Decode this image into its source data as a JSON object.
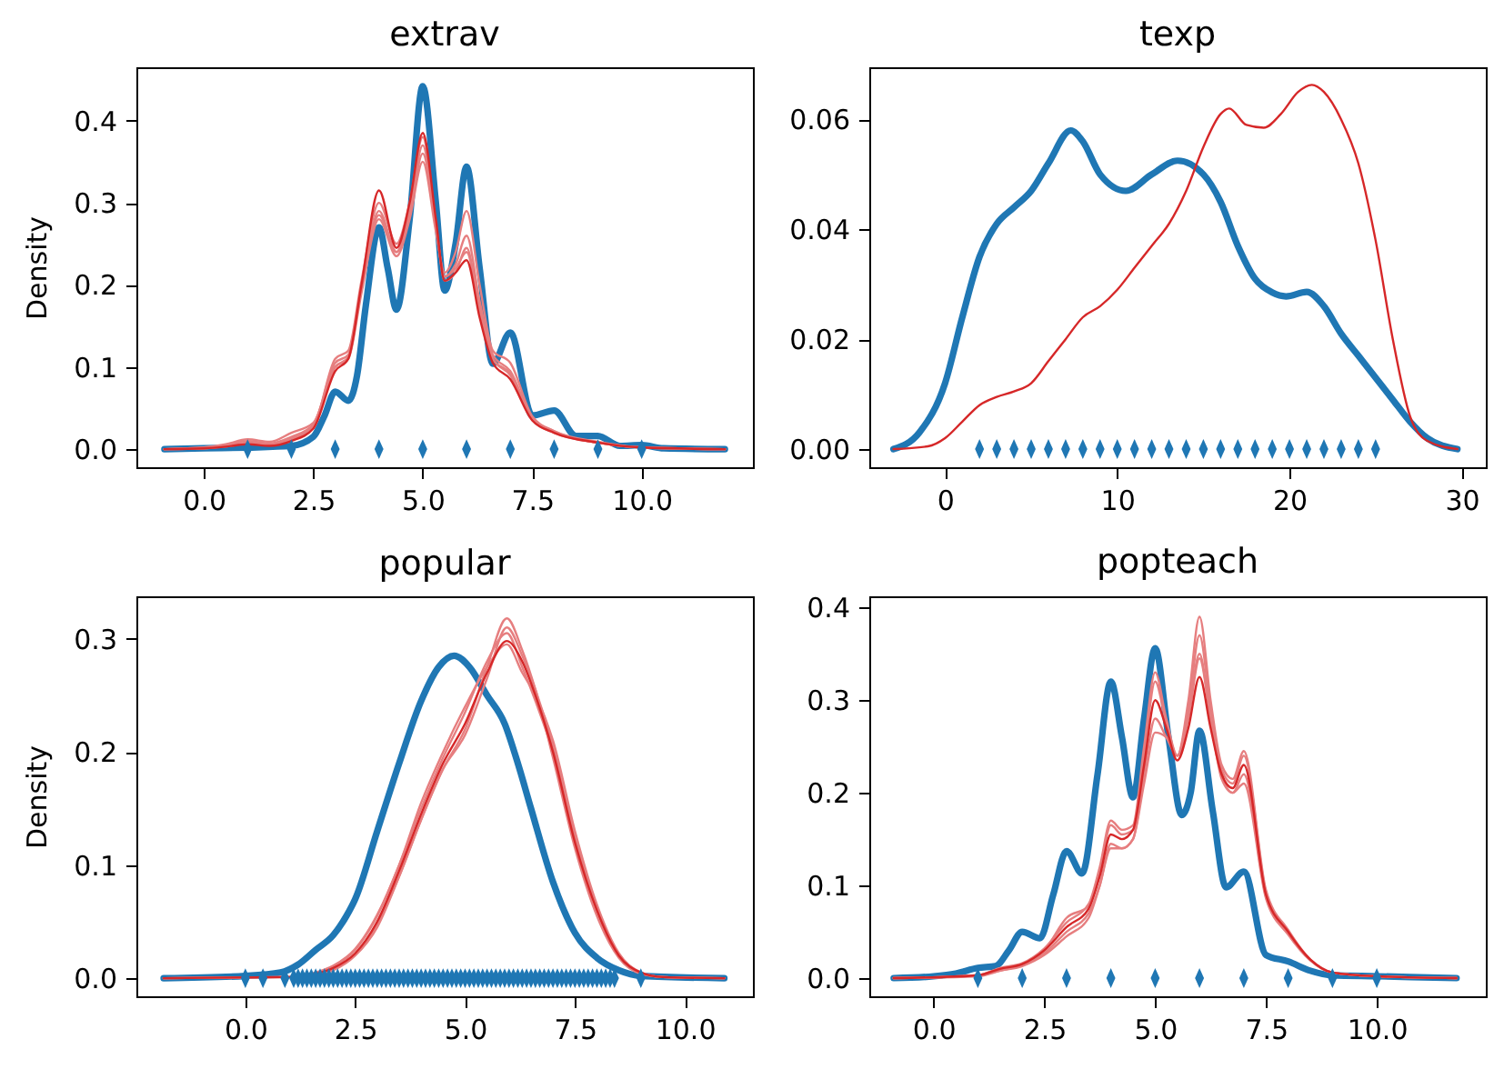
{
  "chart_data": [
    {
      "type": "line",
      "title": "extrav",
      "ylabel": "Density",
      "xlim": [
        -1.54,
        12.54
      ],
      "ylim": [
        -0.022,
        0.465
      ],
      "xticks": [
        {
          "value": 0,
          "label": "0.0"
        },
        2.5,
        {
          "value": 5,
          "label": "5.0"
        },
        7.5,
        {
          "value": 10,
          "label": "10.0"
        }
      ],
      "yticks": [
        {
          "value": 0,
          "label": "0.0"
        },
        0.1,
        0.2,
        0.3,
        0.4
      ],
      "series": [
        {
          "color": "#1f77b4",
          "x": [
            -0.9,
            0,
            1,
            2,
            2.5,
            2.75,
            3,
            3.3,
            3.5,
            3.7,
            4,
            4.2,
            4.4,
            4.7,
            5,
            5.3,
            5.5,
            5.75,
            6,
            6.3,
            6.6,
            7,
            7.5,
            8,
            8.5,
            9,
            9.5,
            10,
            10.5,
            11.9
          ],
          "values": [
            0,
            0.001,
            0.002,
            0.004,
            0.015,
            0.04,
            0.07,
            0.059,
            0.09,
            0.175,
            0.27,
            0.22,
            0.17,
            0.28,
            0.442,
            0.3,
            0.193,
            0.25,
            0.344,
            0.22,
            0.104,
            0.142,
            0.041,
            0.047,
            0.016,
            0.016,
            0.004,
            0.005,
            0.001,
            0
          ]
        },
        {
          "color": "#e67e7f",
          "x": [
            -0.9,
            0,
            0.5,
            1,
            1.5,
            2,
            2.5,
            3,
            3.3,
            3.6,
            4,
            4.4,
            4.7,
            5,
            5.3,
            5.5,
            5.75,
            6,
            6.3,
            6.6,
            7,
            7.5,
            8,
            9,
            10,
            11.9
          ],
          "values": [
            0,
            0.002,
            0.005,
            0.01,
            0.007,
            0.015,
            0.03,
            0.105,
            0.115,
            0.195,
            0.29,
            0.24,
            0.29,
            0.37,
            0.27,
            0.21,
            0.225,
            0.26,
            0.18,
            0.115,
            0.095,
            0.038,
            0.022,
            0.009,
            0.002,
            0
          ]
        },
        {
          "color": "#e67e7f",
          "x": [
            -0.9,
            0,
            0.5,
            1,
            1.5,
            2,
            2.5,
            3,
            3.3,
            3.6,
            4,
            4.4,
            4.7,
            5,
            5.3,
            5.5,
            5.75,
            6,
            6.3,
            6.6,
            7,
            7.5,
            8,
            9,
            10,
            11.9
          ],
          "values": [
            0,
            0.001,
            0.004,
            0.008,
            0.006,
            0.013,
            0.028,
            0.1,
            0.11,
            0.19,
            0.28,
            0.235,
            0.28,
            0.35,
            0.265,
            0.215,
            0.24,
            0.29,
            0.2,
            0.12,
            0.105,
            0.04,
            0.022,
            0.008,
            0.002,
            0
          ]
        },
        {
          "color": "#e67e7f",
          "x": [
            -0.9,
            0,
            0.5,
            1,
            1.5,
            2,
            2.5,
            3,
            3.3,
            3.6,
            4,
            4.4,
            4.7,
            5,
            5.3,
            5.5,
            5.75,
            6,
            6.3,
            6.6,
            7,
            7.5,
            8,
            9,
            10,
            11.9
          ],
          "values": [
            0,
            0.001,
            0.003,
            0.007,
            0.005,
            0.012,
            0.027,
            0.11,
            0.12,
            0.205,
            0.3,
            0.25,
            0.3,
            0.38,
            0.275,
            0.205,
            0.215,
            0.245,
            0.17,
            0.11,
            0.09,
            0.036,
            0.02,
            0.008,
            0.002,
            0
          ]
        },
        {
          "color": "#e67e7f",
          "x": [
            -0.9,
            0,
            0.5,
            1,
            1.5,
            2,
            2.5,
            3,
            3.3,
            3.6,
            4,
            4.4,
            4.7,
            5,
            5.3,
            5.5,
            5.75,
            6,
            6.3,
            6.6,
            7,
            7.5,
            8,
            9,
            10,
            11.9
          ],
          "values": [
            0,
            0.002,
            0.006,
            0.012,
            0.009,
            0.02,
            0.032,
            0.1,
            0.112,
            0.195,
            0.285,
            0.24,
            0.285,
            0.36,
            0.27,
            0.21,
            0.22,
            0.24,
            0.17,
            0.11,
            0.092,
            0.037,
            0.021,
            0.008,
            0.002,
            0
          ]
        },
        {
          "color": "#d62728",
          "x": [
            -0.9,
            0,
            0.5,
            1,
            1.5,
            2,
            2.5,
            3,
            3.3,
            3.6,
            4,
            4.4,
            4.7,
            5,
            5.3,
            5.5,
            5.75,
            6,
            6.3,
            6.6,
            7,
            7.5,
            8,
            9,
            10,
            11.9
          ],
          "values": [
            0,
            0.001,
            0.003,
            0.006,
            0.004,
            0.01,
            0.025,
            0.095,
            0.11,
            0.2,
            0.315,
            0.245,
            0.3,
            0.385,
            0.28,
            0.205,
            0.215,
            0.23,
            0.16,
            0.105,
            0.085,
            0.035,
            0.02,
            0.008,
            0.002,
            0
          ]
        },
        {
          "type": "scatter",
          "color": "#1f77b4",
          "x": [
            1,
            2,
            3,
            4,
            5,
            6,
            7,
            8,
            9,
            10
          ],
          "values": [
            0,
            0,
            0,
            0,
            0,
            0,
            0,
            0,
            0,
            0
          ]
        }
      ]
    },
    {
      "type": "line",
      "title": "texp",
      "xlim": [
        -4.4,
        31.4
      ],
      "ylim": [
        -0.0033,
        0.0695
      ],
      "xticks": [
        0,
        10,
        20,
        30
      ],
      "yticks": [
        {
          "value": 0,
          "label": "0.00"
        },
        {
          "value": 0.02,
          "label": "0.02"
        },
        {
          "value": 0.04,
          "label": "0.04"
        },
        {
          "value": 0.06,
          "label": "0.06"
        }
      ],
      "series": [
        {
          "color": "#1f77b4",
          "x": [
            -3,
            -1.5,
            0,
            1,
            2,
            3,
            4,
            5,
            6,
            7.3,
            8,
            9,
            10.5,
            12,
            13.5,
            15,
            16,
            17,
            18,
            19,
            19.8,
            21,
            22,
            23,
            24,
            25,
            26,
            27,
            28,
            29.75
          ],
          "values": [
            0,
            0.003,
            0.012,
            0.024,
            0.035,
            0.041,
            0.044,
            0.047,
            0.052,
            0.058,
            0.056,
            0.05,
            0.047,
            0.05,
            0.0525,
            0.05,
            0.045,
            0.037,
            0.031,
            0.0285,
            0.0278,
            0.0286,
            0.026,
            0.021,
            0.017,
            0.013,
            0.009,
            0.005,
            0.002,
            0
          ]
        },
        {
          "color": "#d62728",
          "x": [
            -3,
            -1,
            0,
            1,
            2,
            3,
            4,
            5,
            6,
            7,
            8,
            9,
            10,
            11,
            12,
            13,
            14,
            15,
            16,
            16.5,
            17.5,
            18.5,
            19.5,
            20.5,
            21.3,
            22,
            23,
            24,
            25,
            26,
            27,
            28,
            29.75
          ],
          "values": [
            0,
            0.0005,
            0.002,
            0.005,
            0.008,
            0.0095,
            0.0105,
            0.012,
            0.016,
            0.02,
            0.024,
            0.026,
            0.029,
            0.033,
            0.037,
            0.041,
            0.047,
            0.055,
            0.061,
            0.062,
            0.059,
            0.0585,
            0.061,
            0.065,
            0.0663,
            0.065,
            0.06,
            0.052,
            0.038,
            0.02,
            0.006,
            0.0015,
            0
          ]
        },
        {
          "type": "scatter",
          "color": "#1f77b4",
          "x": [
            2,
            3,
            4,
            5,
            6,
            7,
            8,
            9,
            10,
            11,
            12,
            13,
            14,
            15,
            16,
            17,
            18,
            19,
            20,
            21,
            22,
            23,
            24,
            25
          ],
          "values": [
            0,
            0,
            0,
            0,
            0,
            0,
            0,
            0,
            0,
            0,
            0,
            0,
            0,
            0,
            0,
            0,
            0,
            0,
            0,
            0,
            0,
            0,
            0,
            0
          ]
        }
      ]
    },
    {
      "type": "line",
      "title": "popular",
      "ylabel": "Density",
      "xlim": [
        -2.48,
        11.55
      ],
      "ylim": [
        -0.016,
        0.3375
      ],
      "xticks": [
        {
          "value": 0,
          "label": "0.0"
        },
        2.5,
        {
          "value": 5,
          "label": "5.0"
        },
        7.5,
        {
          "value": 10,
          "label": "10.0"
        }
      ],
      "yticks": [
        {
          "value": 0,
          "label": "0.0"
        },
        0.1,
        0.2,
        0.3
      ],
      "series": [
        {
          "color": "#1f77b4",
          "x": [
            -1.86,
            0,
            0.8,
            1.2,
            1.6,
            2,
            2.3,
            2.5,
            3,
            3.5,
            4,
            4.4,
            4.75,
            5.1,
            5.5,
            5.9,
            6.2,
            6.5,
            7,
            7.5,
            8,
            8.5,
            9,
            10.9
          ],
          "values": [
            0,
            0.002,
            0.005,
            0.012,
            0.025,
            0.038,
            0.055,
            0.07,
            0.13,
            0.19,
            0.245,
            0.275,
            0.285,
            0.275,
            0.25,
            0.225,
            0.19,
            0.15,
            0.085,
            0.04,
            0.018,
            0.007,
            0.002,
            0
          ]
        },
        {
          "color": "#e67e7f",
          "x": [
            -1.86,
            1,
            1.5,
            2,
            2.5,
            3,
            3.5,
            4,
            4.5,
            5,
            5.5,
            5.95,
            6.3,
            6.6,
            7,
            7.5,
            8,
            8.5,
            9,
            9.5,
            10.9
          ],
          "values": [
            0,
            0.001,
            0.002,
            0.007,
            0.02,
            0.045,
            0.09,
            0.14,
            0.185,
            0.22,
            0.275,
            0.318,
            0.29,
            0.255,
            0.195,
            0.115,
            0.055,
            0.018,
            0.004,
            0.001,
            0
          ]
        },
        {
          "color": "#e67e7f",
          "x": [
            -1.86,
            1,
            1.5,
            2,
            2.5,
            3,
            3.5,
            4,
            4.5,
            5,
            5.5,
            5.95,
            6.3,
            6.6,
            7,
            7.5,
            8,
            8.5,
            9,
            9.5,
            10.9
          ],
          "values": [
            0,
            0.001,
            0.003,
            0.01,
            0.025,
            0.055,
            0.1,
            0.15,
            0.195,
            0.235,
            0.28,
            0.305,
            0.275,
            0.245,
            0.2,
            0.125,
            0.062,
            0.021,
            0.005,
            0.001,
            0
          ]
        },
        {
          "color": "#e67e7f",
          "x": [
            -1.86,
            1,
            1.5,
            2,
            2.5,
            3,
            3.5,
            4,
            4.5,
            5,
            5.5,
            5.95,
            6.3,
            6.6,
            7,
            7.5,
            8,
            8.5,
            9,
            9.5,
            10.9
          ],
          "values": [
            0,
            0.001,
            0.003,
            0.008,
            0.021,
            0.048,
            0.09,
            0.14,
            0.185,
            0.215,
            0.265,
            0.31,
            0.285,
            0.255,
            0.205,
            0.122,
            0.06,
            0.02,
            0.005,
            0.001,
            0
          ]
        },
        {
          "color": "#e67e7f",
          "x": [
            -1.86,
            1,
            1.5,
            2,
            2.5,
            3,
            3.5,
            4,
            4.5,
            5,
            5.5,
            5.95,
            6.3,
            6.6,
            7,
            7.5,
            8,
            8.5,
            9,
            9.5,
            10.9
          ],
          "values": [
            0,
            0.001,
            0.004,
            0.011,
            0.026,
            0.056,
            0.1,
            0.155,
            0.2,
            0.24,
            0.275,
            0.295,
            0.27,
            0.25,
            0.21,
            0.13,
            0.065,
            0.022,
            0.005,
            0.001,
            0
          ]
        },
        {
          "color": "#d62728",
          "x": [
            -1.86,
            1,
            1.5,
            2,
            2.5,
            3,
            3.5,
            4,
            4.5,
            5,
            5.5,
            5.95,
            6.3,
            6.6,
            7,
            7.5,
            8,
            8.5,
            9,
            9.5,
            10.9
          ],
          "values": [
            0,
            0.001,
            0.003,
            0.009,
            0.022,
            0.05,
            0.095,
            0.145,
            0.19,
            0.225,
            0.27,
            0.298,
            0.28,
            0.25,
            0.2,
            0.12,
            0.06,
            0.02,
            0.005,
            0.001,
            0
          ]
        },
        {
          "type": "scatter",
          "color": "#1f77b4",
          "x": [
            0,
            0.4,
            0.9,
            1.1,
            1.2,
            1.3,
            1.4,
            1.5,
            1.6,
            1.7,
            1.8,
            1.9,
            2,
            2.1,
            2.2,
            2.3,
            2.4,
            2.5,
            2.6,
            2.7,
            2.8,
            2.9,
            3,
            3.1,
            3.2,
            3.3,
            3.4,
            3.5,
            3.6,
            3.7,
            3.8,
            3.9,
            4,
            4.1,
            4.2,
            4.3,
            4.4,
            4.5,
            4.6,
            4.7,
            4.8,
            4.9,
            5,
            5.1,
            5.2,
            5.3,
            5.4,
            5.5,
            5.6,
            5.7,
            5.8,
            5.9,
            6,
            6.1,
            6.2,
            6.3,
            6.4,
            6.5,
            6.6,
            6.7,
            6.8,
            6.9,
            7,
            7.1,
            7.2,
            7.3,
            7.4,
            7.5,
            7.6,
            7.7,
            7.8,
            7.9,
            8,
            8.1,
            8.2,
            8.3,
            8.4,
            9
          ],
          "values": [
            0,
            0,
            0,
            0,
            0,
            0,
            0,
            0,
            0,
            0,
            0,
            0,
            0,
            0,
            0,
            0,
            0,
            0,
            0,
            0,
            0,
            0,
            0,
            0,
            0,
            0,
            0,
            0,
            0,
            0,
            0,
            0,
            0,
            0,
            0,
            0,
            0,
            0,
            0,
            0,
            0,
            0,
            0,
            0,
            0,
            0,
            0,
            0,
            0,
            0,
            0,
            0,
            0,
            0,
            0,
            0,
            0,
            0,
            0,
            0,
            0,
            0,
            0,
            0,
            0,
            0,
            0,
            0,
            0,
            0,
            0,
            0,
            0,
            0,
            0,
            0,
            0,
            0
          ]
        }
      ]
    },
    {
      "type": "line",
      "title": "popteach",
      "xlim": [
        -1.45,
        12.46
      ],
      "ylim": [
        -0.0196,
        0.412
      ],
      "xticks": [
        {
          "value": 0,
          "label": "0.0"
        },
        2.5,
        {
          "value": 5,
          "label": "5.0"
        },
        7.5,
        {
          "value": 10,
          "label": "10.0"
        }
      ],
      "yticks": [
        {
          "value": 0,
          "label": "0.0"
        },
        0.1,
        0.2,
        0.3,
        0.4
      ],
      "series": [
        {
          "color": "#1f77b4",
          "x": [
            -0.9,
            0,
            0.5,
            1,
            1.4,
            1.7,
            2,
            2.4,
            2.7,
            3,
            3.35,
            3.7,
            4,
            4.25,
            4.5,
            4.75,
            5,
            5.3,
            5.6,
            5.8,
            6,
            6.3,
            6.6,
            7,
            7.5,
            8,
            8.5,
            9,
            10,
            11.8
          ],
          "values": [
            0,
            0.002,
            0.005,
            0.011,
            0.013,
            0.03,
            0.05,
            0.043,
            0.09,
            0.137,
            0.113,
            0.22,
            0.32,
            0.26,
            0.195,
            0.28,
            0.356,
            0.26,
            0.176,
            0.2,
            0.267,
            0.18,
            0.098,
            0.115,
            0.025,
            0.018,
            0.008,
            0.003,
            0.002,
            0
          ]
        },
        {
          "color": "#e67e7f",
          "x": [
            -0.9,
            1,
            1.5,
            2,
            2.5,
            3,
            3.5,
            3.75,
            4,
            4.25,
            4.5,
            4.75,
            5,
            5.25,
            5.5,
            5.75,
            6,
            6.25,
            6.5,
            6.75,
            7,
            7.5,
            8,
            8.5,
            9,
            10,
            11.8
          ],
          "values": [
            0,
            0.003,
            0.008,
            0.013,
            0.025,
            0.045,
            0.065,
            0.1,
            0.14,
            0.14,
            0.15,
            0.21,
            0.265,
            0.26,
            0.24,
            0.3,
            0.39,
            0.3,
            0.23,
            0.215,
            0.245,
            0.095,
            0.052,
            0.02,
            0.006,
            0.002,
            0
          ]
        },
        {
          "color": "#e67e7f",
          "x": [
            -0.9,
            1,
            1.5,
            2,
            2.5,
            3,
            3.5,
            3.75,
            4,
            4.25,
            4.5,
            4.75,
            5,
            5.25,
            5.5,
            5.75,
            6,
            6.25,
            6.5,
            6.75,
            7,
            7.5,
            8,
            8.5,
            9,
            10,
            11.8
          ],
          "values": [
            0,
            0.002,
            0.008,
            0.014,
            0.027,
            0.05,
            0.07,
            0.1,
            0.145,
            0.14,
            0.15,
            0.22,
            0.28,
            0.26,
            0.24,
            0.29,
            0.37,
            0.29,
            0.225,
            0.21,
            0.24,
            0.092,
            0.05,
            0.02,
            0.006,
            0.002,
            0
          ]
        },
        {
          "color": "#e67e7f",
          "x": [
            -0.9,
            1,
            1.5,
            2,
            2.5,
            3,
            3.5,
            3.75,
            4,
            4.25,
            4.5,
            4.75,
            5,
            5.25,
            5.5,
            5.75,
            6,
            6.25,
            6.5,
            6.75,
            7,
            7.5,
            8,
            8.5,
            9,
            10,
            11.8
          ],
          "values": [
            0,
            0.003,
            0.011,
            0.016,
            0.032,
            0.06,
            0.08,
            0.12,
            0.17,
            0.16,
            0.165,
            0.25,
            0.33,
            0.28,
            0.24,
            0.28,
            0.345,
            0.28,
            0.215,
            0.2,
            0.22,
            0.088,
            0.048,
            0.02,
            0.006,
            0.002,
            0
          ]
        },
        {
          "color": "#e67e7f",
          "x": [
            -0.9,
            1,
            1.5,
            2,
            2.5,
            3,
            3.5,
            3.75,
            4,
            4.25,
            4.5,
            4.75,
            5,
            5.25,
            5.5,
            5.75,
            6,
            6.25,
            6.5,
            6.75,
            7,
            7.5,
            8,
            8.5,
            9,
            10,
            11.8
          ],
          "values": [
            0,
            0.003,
            0.01,
            0.015,
            0.03,
            0.065,
            0.078,
            0.115,
            0.165,
            0.155,
            0.16,
            0.24,
            0.32,
            0.275,
            0.24,
            0.285,
            0.35,
            0.28,
            0.22,
            0.2,
            0.21,
            0.086,
            0.047,
            0.019,
            0.006,
            0.002,
            0
          ]
        },
        {
          "color": "#d62728",
          "x": [
            -0.9,
            1,
            1.5,
            2,
            2.5,
            3,
            3.5,
            3.75,
            4,
            4.25,
            4.5,
            4.75,
            5,
            5.25,
            5.5,
            5.75,
            6,
            6.25,
            6.5,
            6.75,
            7,
            7.5,
            8,
            8.5,
            9,
            10,
            11.8
          ],
          "values": [
            0,
            0.003,
            0.01,
            0.015,
            0.03,
            0.055,
            0.075,
            0.11,
            0.155,
            0.15,
            0.16,
            0.23,
            0.3,
            0.27,
            0.235,
            0.27,
            0.325,
            0.27,
            0.22,
            0.205,
            0.23,
            0.09,
            0.05,
            0.02,
            0.006,
            0.002,
            0
          ]
        },
        {
          "type": "scatter",
          "color": "#1f77b4",
          "x": [
            1,
            2,
            3,
            4,
            5,
            6,
            7,
            8,
            9,
            10
          ],
          "values": [
            0,
            0,
            0,
            0,
            0,
            0,
            0,
            0,
            0,
            0
          ]
        }
      ]
    }
  ]
}
